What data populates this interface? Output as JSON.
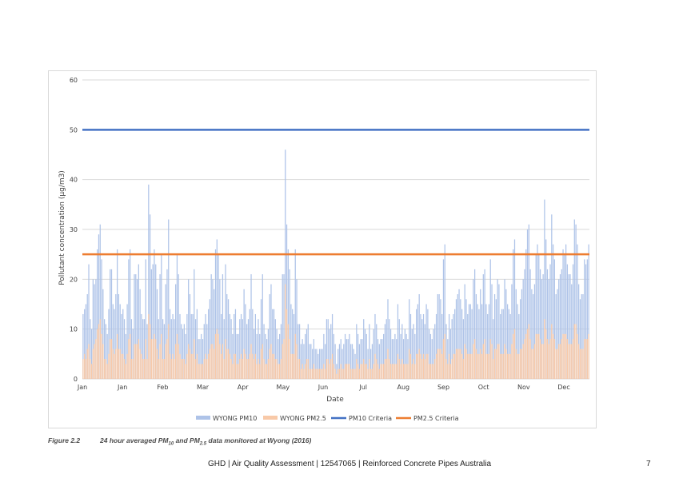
{
  "caption": {
    "number": "Figure 2.2",
    "text_main": "24 hour averaged PM",
    "sub1": "10",
    "text_and": " and PM",
    "sub2": "2.5",
    "text_tail": " data monitored at Wyong (2016)"
  },
  "footer": {
    "text": "GHD | Air Quality Assessment | 12547065 | Reinforced Concrete Pipes Australia",
    "page": "7"
  },
  "chart_data": {
    "type": "bar",
    "title": "",
    "xlabel": "Date",
    "ylabel": "Pollutant concentration (µg/m3)",
    "ylim": [
      0,
      60
    ],
    "yticks": [
      0,
      10,
      20,
      30,
      40,
      50,
      60
    ],
    "xtick_labels": [
      "Jan",
      "Jan",
      "Feb",
      "Mar",
      "Apr",
      "May",
      "Jun",
      "Jul",
      "Aug",
      "Sep",
      "Oct",
      "Nov",
      "Dec"
    ],
    "grid": true,
    "legend_position": "bottom",
    "colors": {
      "pm10": "#aec3e8",
      "pm25": "#f8c9a8",
      "pm10_criteria": "#4472c4",
      "pm25_criteria": "#ed7d31",
      "grid": "#d9d9d9"
    },
    "legend": [
      "WYONG PM10",
      "WYONG PM2.5",
      "PM10 Criteria",
      "PM2.5 Criteria"
    ],
    "series": [
      {
        "name": "WYONG PM10",
        "values": [
          13,
          14,
          15,
          17,
          23,
          12,
          10,
          20,
          19,
          20,
          26,
          29,
          31,
          24,
          18,
          12,
          11,
          9,
          14,
          22,
          22,
          15,
          14,
          17,
          26,
          17,
          15,
          13,
          14,
          12,
          9,
          15,
          24,
          26,
          12,
          10,
          21,
          21,
          20,
          23,
          18,
          13,
          12,
          12,
          24,
          11,
          39,
          33,
          22,
          23,
          26,
          23,
          18,
          12,
          21,
          25,
          12,
          11,
          19,
          22,
          32,
          14,
          12,
          13,
          12,
          19,
          25,
          21,
          13,
          11,
          10,
          11,
          9,
          13,
          20,
          17,
          13,
          13,
          22,
          12,
          14,
          8,
          8,
          9,
          8,
          11,
          13,
          11,
          14,
          16,
          21,
          20,
          18,
          26,
          28,
          25,
          20,
          13,
          21,
          12,
          23,
          17,
          16,
          13,
          12,
          9,
          13,
          14,
          9,
          9,
          12,
          13,
          12,
          18,
          15,
          11,
          12,
          14,
          21,
          14,
          10,
          13,
          9,
          12,
          9,
          16,
          21,
          11,
          9,
          8,
          10,
          17,
          19,
          14,
          14,
          12,
          10,
          8,
          9,
          11,
          21,
          21,
          46,
          31,
          26,
          22,
          15,
          14,
          13,
          26,
          20,
          11,
          11,
          7,
          8,
          7,
          9,
          10,
          11,
          7,
          7,
          6,
          8,
          6,
          6,
          5,
          6,
          6,
          6,
          9,
          7,
          12,
          12,
          10,
          11,
          13,
          9,
          7,
          3,
          6,
          7,
          8,
          6,
          7,
          9,
          8,
          8,
          9,
          7,
          7,
          6,
          5,
          11,
          9,
          7,
          8,
          8,
          12,
          10,
          9,
          6,
          11,
          6,
          7,
          10,
          13,
          11,
          8,
          7,
          8,
          8,
          9,
          11,
          12,
          16,
          12,
          10,
          8,
          8,
          9,
          8,
          15,
          12,
          9,
          11,
          8,
          10,
          9,
          8,
          16,
          13,
          10,
          11,
          9,
          14,
          15,
          17,
          13,
          12,
          13,
          11,
          15,
          14,
          10,
          9,
          8,
          10,
          11,
          13,
          17,
          17,
          16,
          13,
          24,
          27,
          11,
          8,
          13,
          10,
          12,
          13,
          14,
          16,
          17,
          18,
          16,
          14,
          12,
          19,
          16,
          13,
          15,
          15,
          14,
          20,
          22,
          17,
          15,
          14,
          18,
          15,
          21,
          22,
          15,
          13,
          15,
          24,
          19,
          12,
          17,
          16,
          20,
          19,
          13,
          14,
          14,
          20,
          18,
          15,
          14,
          13,
          19,
          26,
          28,
          18,
          15,
          13,
          16,
          18,
          20,
          22,
          26,
          30,
          31,
          22,
          18,
          17,
          19,
          25,
          27,
          25,
          22,
          20,
          21,
          36,
          28,
          22,
          20,
          23,
          33,
          27,
          24,
          17,
          18,
          20,
          21,
          22,
          26,
          25,
          27,
          23,
          21,
          21,
          19,
          23,
          32,
          31,
          27,
          19,
          16,
          17,
          17,
          24,
          23,
          24,
          27
        ]
      },
      {
        "name": "WYONG PM2.5",
        "values": [
          4,
          5,
          4,
          6,
          7,
          4,
          3,
          6,
          7,
          8,
          10,
          11,
          12,
          9,
          7,
          4,
          4,
          3,
          5,
          8,
          8,
          6,
          5,
          6,
          9,
          6,
          6,
          5,
          5,
          4,
          3,
          5,
          8,
          9,
          4,
          4,
          7,
          7,
          7,
          8,
          6,
          5,
          4,
          4,
          8,
          4,
          13,
          11,
          8,
          8,
          9,
          8,
          6,
          4,
          7,
          9,
          4,
          4,
          7,
          8,
          11,
          5,
          4,
          5,
          4,
          7,
          9,
          7,
          5,
          4,
          4,
          4,
          3,
          5,
          7,
          6,
          5,
          5,
          8,
          4,
          5,
          3,
          3,
          3,
          3,
          4,
          5,
          4,
          5,
          6,
          7,
          7,
          6,
          9,
          10,
          9,
          7,
          5,
          7,
          4,
          8,
          6,
          6,
          5,
          4,
          3,
          5,
          5,
          3,
          3,
          4,
          5,
          4,
          6,
          5,
          4,
          4,
          5,
          7,
          5,
          4,
          5,
          3,
          4,
          3,
          6,
          7,
          4,
          3,
          3,
          4,
          6,
          7,
          5,
          5,
          4,
          4,
          3,
          3,
          4,
          7,
          8,
          19,
          14,
          11,
          8,
          5,
          5,
          5,
          9,
          7,
          4,
          4,
          2,
          3,
          2,
          3,
          4,
          4,
          2,
          2,
          2,
          3,
          2,
          2,
          2,
          2,
          2,
          2,
          3,
          2,
          4,
          4,
          3,
          4,
          5,
          3,
          2,
          1,
          2,
          2,
          3,
          2,
          2,
          3,
          3,
          3,
          3,
          2,
          2,
          2,
          2,
          4,
          3,
          2,
          3,
          3,
          4,
          3,
          3,
          2,
          4,
          2,
          2,
          3,
          5,
          4,
          3,
          2,
          3,
          3,
          3,
          4,
          4,
          6,
          4,
          3,
          3,
          3,
          3,
          3,
          5,
          4,
          3,
          4,
          3,
          3,
          3,
          3,
          6,
          5,
          3,
          4,
          3,
          5,
          5,
          6,
          5,
          4,
          5,
          4,
          5,
          5,
          3,
          3,
          3,
          3,
          4,
          5,
          6,
          6,
          6,
          5,
          8,
          9,
          4,
          3,
          5,
          3,
          4,
          5,
          5,
          6,
          6,
          6,
          6,
          5,
          4,
          7,
          6,
          5,
          5,
          5,
          5,
          7,
          8,
          6,
          5,
          5,
          6,
          5,
          7,
          8,
          5,
          5,
          5,
          8,
          7,
          4,
          6,
          6,
          7,
          7,
          5,
          5,
          5,
          7,
          6,
          5,
          5,
          5,
          7,
          9,
          10,
          6,
          5,
          5,
          6,
          6,
          7,
          8,
          9,
          10,
          11,
          8,
          6,
          6,
          7,
          9,
          9,
          9,
          8,
          7,
          7,
          12,
          10,
          8,
          7,
          8,
          11,
          9,
          8,
          6,
          6,
          7,
          7,
          8,
          9,
          9,
          9,
          8,
          7,
          7,
          7,
          8,
          11,
          11,
          9,
          7,
          6,
          6,
          6,
          8,
          8,
          8,
          9
        ]
      },
      {
        "name": "PM10 Criteria",
        "constant": 50
      },
      {
        "name": "PM2.5 Criteria",
        "constant": 25
      }
    ]
  }
}
